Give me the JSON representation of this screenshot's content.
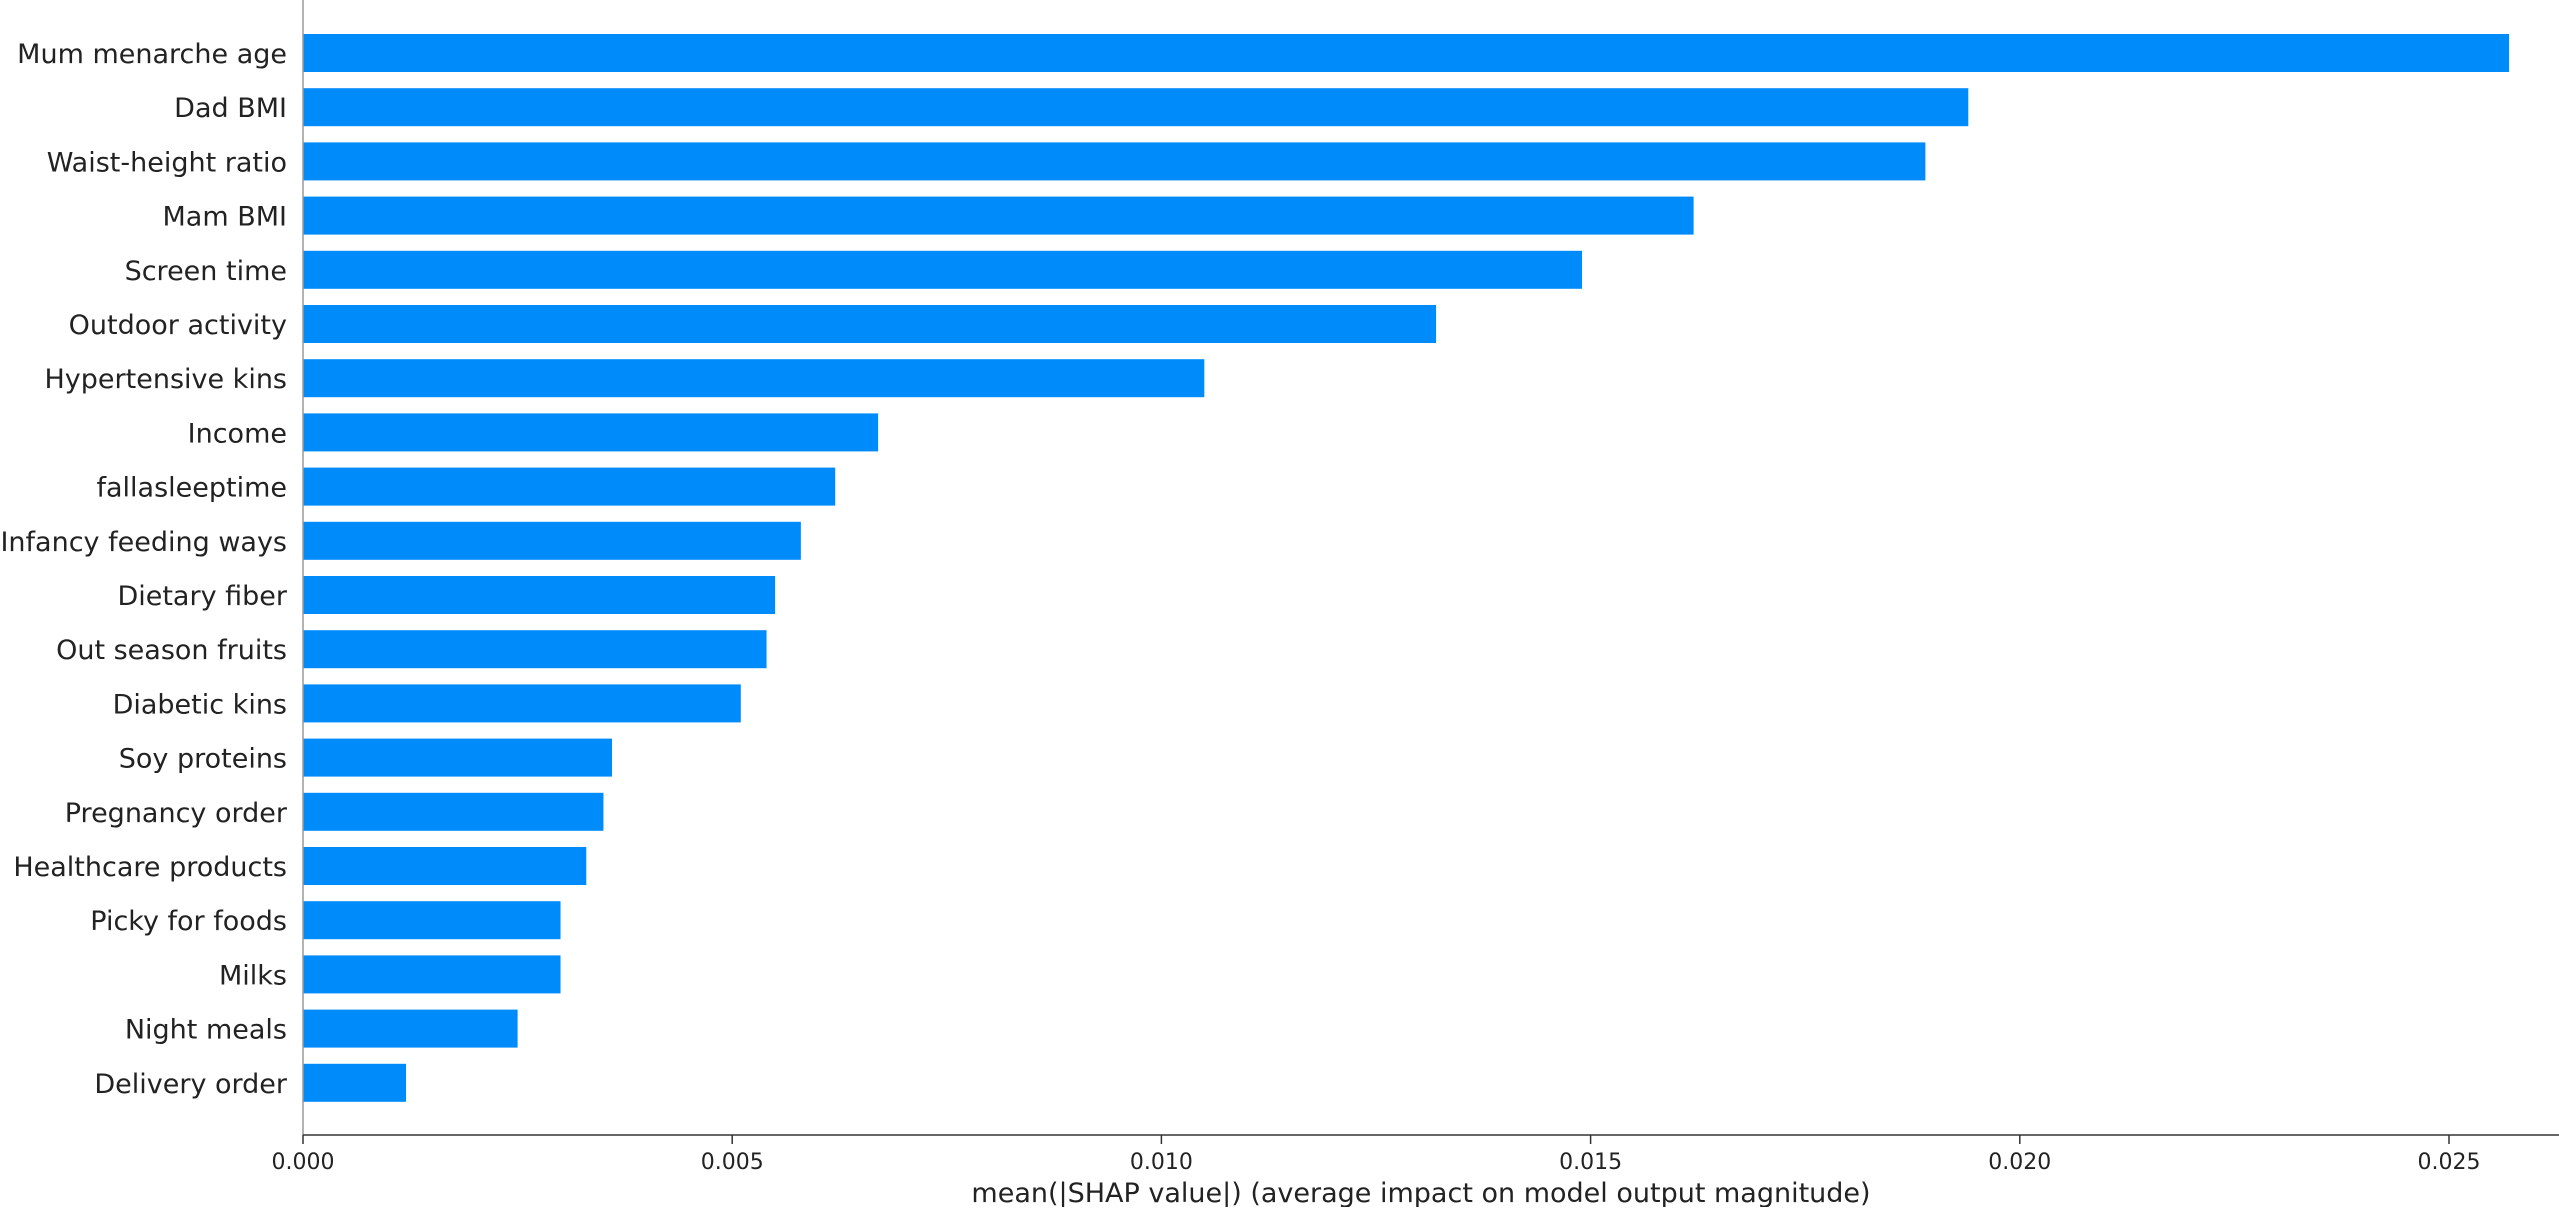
{
  "chart_data": {
    "type": "bar",
    "orientation": "horizontal",
    "title": "",
    "xlabel": "mean(|SHAP value|) (average impact on model output magnitude)",
    "ylabel": "",
    "xlim": [
      0,
      0.027
    ],
    "xticks": [
      "0.000",
      "0.005",
      "0.010",
      "0.015",
      "0.020",
      "0.025"
    ],
    "grid": false,
    "legend": "none",
    "bar_color": "#008bfb",
    "categories": [
      "Mum menarche age",
      "Dad BMI",
      "Waist-height ratio",
      "Mam BMI",
      "Screen time",
      "Outdoor activity",
      "Hypertensive kins",
      "Income",
      "fallasleeptime",
      "Infancy feeding ways",
      "Dietary fiber",
      "Out season fruits",
      "Diabetic kins",
      "Soy proteins",
      "Pregnancy order",
      "Healthcare products",
      "Picky for foods",
      "Milks",
      "Night meals",
      "Delivery order"
    ],
    "values": [
      0.0257,
      0.0194,
      0.0189,
      0.0162,
      0.0149,
      0.0132,
      0.0105,
      0.0067,
      0.0062,
      0.0058,
      0.0055,
      0.0054,
      0.0051,
      0.0036,
      0.0035,
      0.0033,
      0.003,
      0.003,
      0.0025,
      0.0012
    ]
  }
}
